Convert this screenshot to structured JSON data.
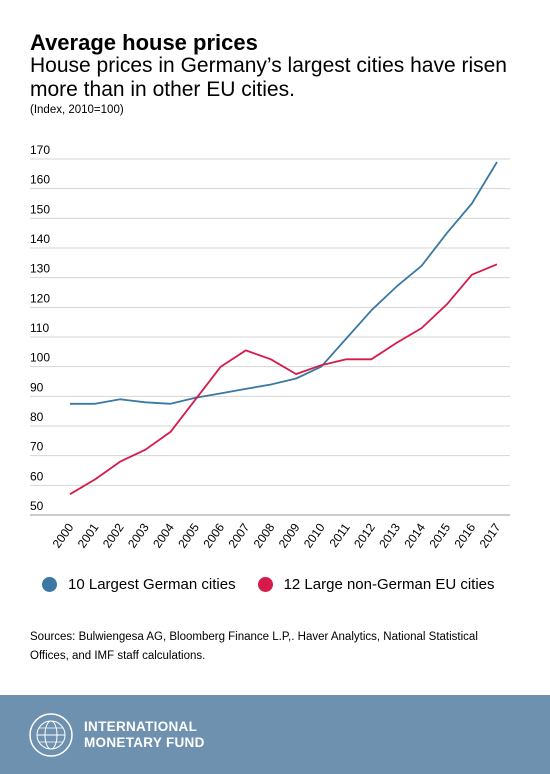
{
  "header": {
    "title": "Average house prices",
    "subtitle": "House prices in Germany’s largest cities have risen more than in other EU cities.",
    "note": "(Index, 2010=100)"
  },
  "chart_data": {
    "type": "line",
    "x": [
      "2000",
      "2001",
      "2002",
      "2003",
      "2004",
      "2005",
      "2006",
      "2007",
      "2008",
      "2009",
      "2010",
      "2011",
      "2012",
      "2013",
      "2014",
      "2015",
      "2016",
      "2017"
    ],
    "ylim": [
      50,
      170
    ],
    "yticks": [
      50,
      60,
      70,
      80,
      90,
      100,
      110,
      120,
      130,
      140,
      150,
      160,
      170
    ],
    "grid": true,
    "legend_position": "bottom",
    "series": [
      {
        "name": "10 Largest German cities",
        "color": "#3b78a3",
        "values": [
          87.5,
          87.5,
          89,
          88,
          87.5,
          89.5,
          91,
          92.5,
          94,
          96,
          100,
          109.5,
          119,
          127,
          134,
          145,
          155,
          169
        ]
      },
      {
        "name": "12 Large non-German EU cities",
        "color": "#d61a4a",
        "values": [
          57,
          62,
          68,
          72,
          78,
          89,
          100,
          105.5,
          102.5,
          97.5,
          100.5,
          102.5,
          102.5,
          108,
          113,
          121,
          131,
          134.5
        ]
      }
    ]
  },
  "footer": {
    "sources": "Sources: Bulwiengesa AG, Bloomberg Finance L.P,. Haver Analytics, National Statistical Offices, and IMF staff calculations.",
    "org_line1": "INTERNATIONAL",
    "org_line2": "MONETARY FUND",
    "seal_text": "INTERNATIONAL MONETARY FUND"
  }
}
